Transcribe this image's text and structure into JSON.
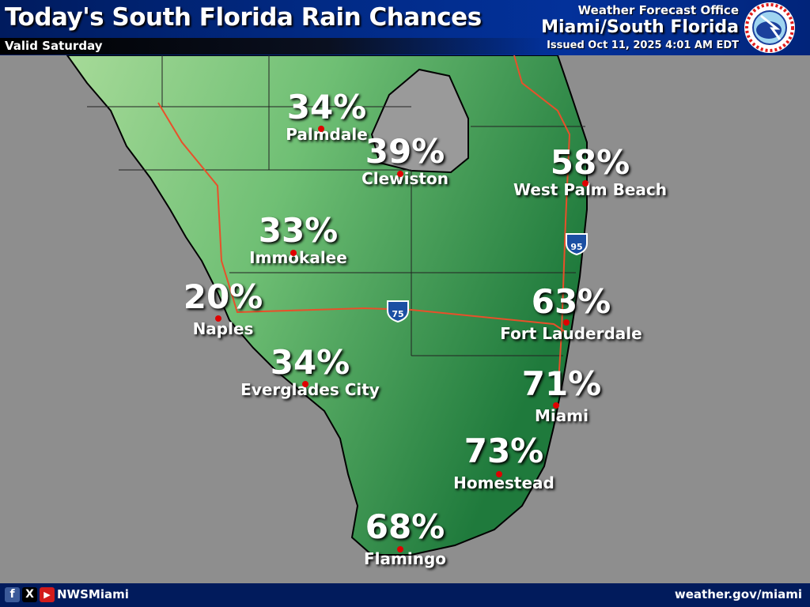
{
  "header": {
    "title": "Today's South Florida Rain Chances",
    "valid": "Valid Saturday",
    "office_label": "Weather Forecast Office",
    "office": "Miami/South Florida",
    "issued": "Issued Oct 11, 2025 4:01 AM EDT",
    "logo_text": "NATIONAL WEATHER SERVICE"
  },
  "colors": {
    "land_light": "#9fd691",
    "land_dark": "#2f8b47",
    "water": "#8e8e8e",
    "dot": "#e00000",
    "road": "#e8502a"
  },
  "highways": [
    "75",
    "95"
  ],
  "cities": [
    {
      "name": "Palmdale",
      "pct": "34%"
    },
    {
      "name": "Clewiston",
      "pct": "39%"
    },
    {
      "name": "West Palm Beach",
      "pct": "58%"
    },
    {
      "name": "Immokalee",
      "pct": "33%"
    },
    {
      "name": "Naples",
      "pct": "20%"
    },
    {
      "name": "Fort Lauderdale",
      "pct": "63%"
    },
    {
      "name": "Everglades City",
      "pct": "34%"
    },
    {
      "name": "Miami",
      "pct": "71%"
    },
    {
      "name": "Homestead",
      "pct": "73%"
    },
    {
      "name": "Flamingo",
      "pct": "68%"
    }
  ],
  "footer": {
    "handle": "NWSMiami",
    "url": "weather.gov/miami",
    "facebook": "f",
    "x": "X",
    "youtube": "▶"
  }
}
